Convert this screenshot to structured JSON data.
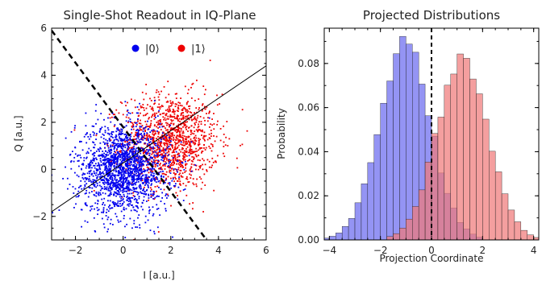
{
  "chart_data": [
    {
      "type": "scatter",
      "title": "Single-Shot Readout in IQ-Plane",
      "xlabel": "I [a.u.]",
      "ylabel": "Q [a.u.]",
      "xlim": [
        -3,
        6
      ],
      "ylim": [
        -3,
        6
      ],
      "xticks": [
        "-2",
        "0",
        "2",
        "4",
        "6"
      ],
      "yticks": [
        "-2",
        "0",
        "2",
        "4",
        "6"
      ],
      "legend": "top-center",
      "series": [
        {
          "name": "|0⟩",
          "color": "#0000ee",
          "center": [
            0,
            0
          ],
          "spread": 1.0,
          "count": 1300
        },
        {
          "name": "|1⟩",
          "color": "#ee0000",
          "center": [
            2,
            1.2
          ],
          "spread": 1.0,
          "count": 1300
        }
      ],
      "lines": [
        {
          "style": "solid",
          "from": [
            -3,
            -1.8
          ],
          "to": [
            6,
            4.4
          ]
        },
        {
          "style": "dashed",
          "from": [
            -3,
            5.9
          ],
          "to": [
            3.5,
            -3
          ]
        }
      ]
    },
    {
      "type": "bar",
      "title": "Projected Distributions",
      "xlabel": "Projection Coordinate",
      "ylabel": "Probability",
      "xlim": [
        -4.2,
        4.2
      ],
      "ylim": [
        0,
        0.096
      ],
      "xticks": [
        "-4",
        "-2",
        "0",
        "2",
        "4"
      ],
      "yticks": [
        "0.00",
        "0.02",
        "0.04",
        "0.06",
        "0.08"
      ],
      "threshold_x": 0,
      "bin_width": 0.25,
      "series": [
        {
          "name": "|0⟩",
          "color": "#6b6bf0",
          "mean": -1.05,
          "sd": 1.0,
          "peak": 0.089
        },
        {
          "name": "|1⟩",
          "color": "#f07a7a",
          "mean": 1.2,
          "sd": 1.0,
          "peak": 0.083
        }
      ]
    }
  ]
}
